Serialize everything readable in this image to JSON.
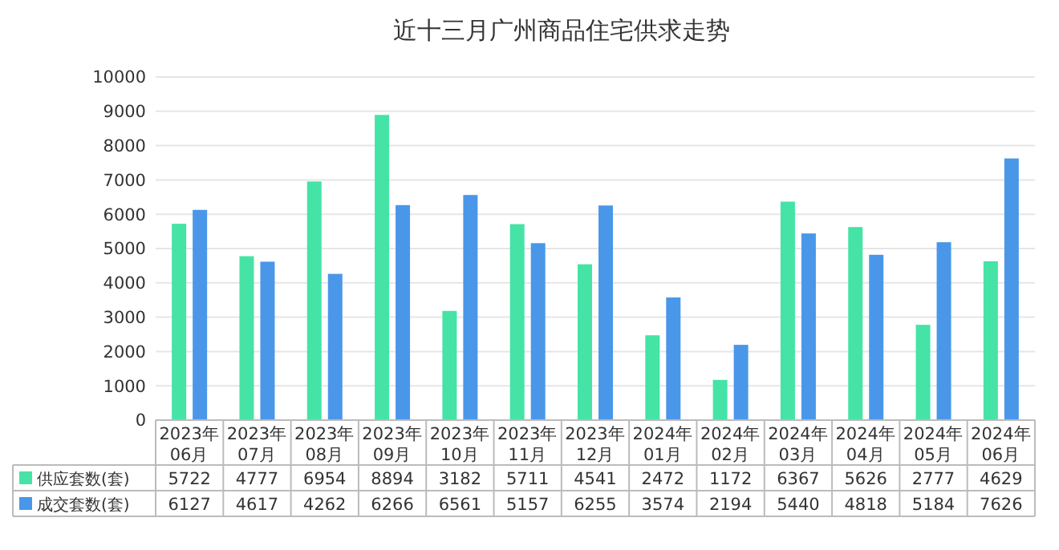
{
  "chart_data": {
    "type": "bar",
    "title": "近十三月广州商品住宅供求走势",
    "categories": [
      "2023年06月",
      "2023年07月",
      "2023年08月",
      "2023年09月",
      "2023年10月",
      "2023年11月",
      "2023年12月",
      "2024年01月",
      "2024年02月",
      "2024年03月",
      "2024年04月",
      "2024年05月",
      "2024年06月"
    ],
    "series": [
      {
        "name": "供应套数(套)",
        "color": "#45e3a6",
        "values": [
          5722,
          4777,
          6954,
          8894,
          3182,
          5711,
          4541,
          2472,
          1172,
          6367,
          5626,
          2777,
          4629
        ]
      },
      {
        "name": "成交套数(套)",
        "color": "#4a97ea",
        "values": [
          6127,
          4617,
          4262,
          6266,
          6561,
          5157,
          6255,
          3574,
          2194,
          5440,
          4818,
          5184,
          7626
        ]
      }
    ],
    "ylim": [
      0,
      10000
    ],
    "yticks": [
      0,
      1000,
      2000,
      3000,
      4000,
      5000,
      6000,
      7000,
      8000,
      9000,
      10000
    ],
    "grid": "y",
    "legend": "bottom",
    "data_labels": true
  }
}
